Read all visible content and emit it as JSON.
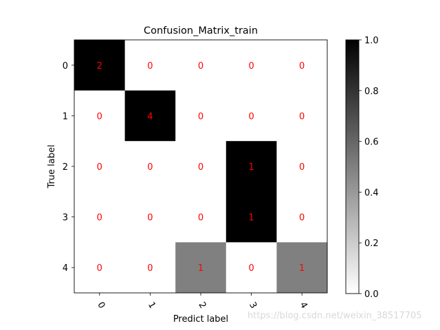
{
  "chart_data": {
    "type": "heatmap",
    "title": "Confusion_Matrix_train",
    "xlabel": "Predict label",
    "ylabel": "True label",
    "x_ticks": [
      "0",
      "1",
      "2",
      "3",
      "4"
    ],
    "y_ticks": [
      "0",
      "1",
      "2",
      "3",
      "4"
    ],
    "cell_counts": [
      [
        2,
        0,
        0,
        0,
        0
      ],
      [
        0,
        4,
        0,
        0,
        0
      ],
      [
        0,
        0,
        0,
        1,
        0
      ],
      [
        0,
        0,
        0,
        1,
        0
      ],
      [
        0,
        0,
        1,
        0,
        1
      ]
    ],
    "normalized_values": [
      [
        1.0,
        0.0,
        0.0,
        0.0,
        0.0
      ],
      [
        0.0,
        1.0,
        0.0,
        0.0,
        0.0
      ],
      [
        0.0,
        0.0,
        0.0,
        1.0,
        0.0
      ],
      [
        0.0,
        0.0,
        0.0,
        1.0,
        0.0
      ],
      [
        0.0,
        0.0,
        0.5,
        0.0,
        0.5
      ]
    ],
    "colormap": "greys",
    "colorbar": {
      "range": [
        0.0,
        1.0
      ],
      "ticks": [
        "0.0",
        "0.2",
        "0.4",
        "0.6",
        "0.8",
        "1.0"
      ]
    },
    "annotation_color": "#ff0000",
    "grid": false
  },
  "watermark": "https://blog.csdn.net/weixin_38517705"
}
